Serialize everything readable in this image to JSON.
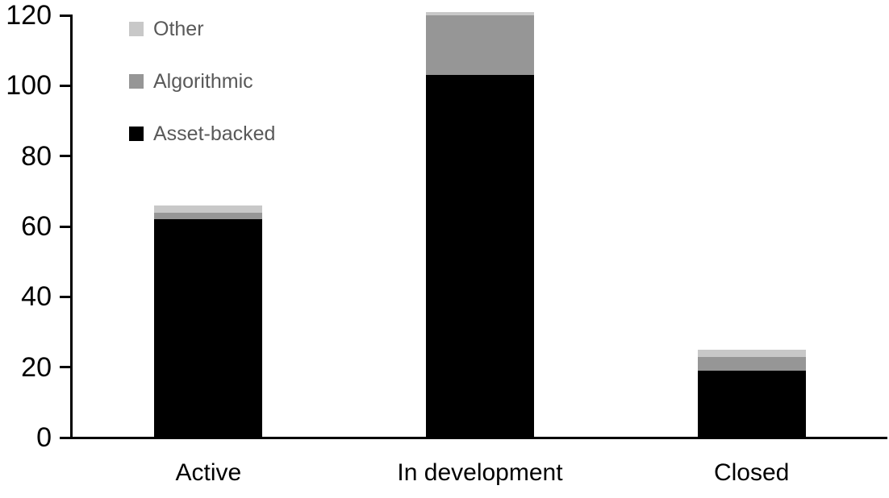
{
  "chart_data": {
    "type": "bar",
    "stacked": true,
    "title": "",
    "xlabel": "",
    "ylabel": "",
    "categories": [
      "Active",
      "In development",
      "Closed"
    ],
    "series": [
      {
        "name": "Asset-backed",
        "color": "#000000",
        "values": [
          62,
          103,
          19
        ]
      },
      {
        "name": "Algorithmic",
        "color": "#969696",
        "values": [
          2,
          17,
          4
        ]
      },
      {
        "name": "Other",
        "color": "#c8c8c8",
        "values": [
          2,
          1,
          2
        ]
      }
    ],
    "totals": [
      66,
      121,
      25
    ],
    "ylim": [
      0,
      120
    ],
    "yticks": [
      0,
      20,
      40,
      60,
      80,
      100,
      120
    ],
    "grid": false,
    "legend": {
      "position": "top-left",
      "order": [
        "Other",
        "Algorithmic",
        "Asset-backed"
      ],
      "text_color": "#595959"
    }
  },
  "colors": {
    "axis": "#000000",
    "axis_text": "#000000",
    "background": "#ffffff"
  }
}
